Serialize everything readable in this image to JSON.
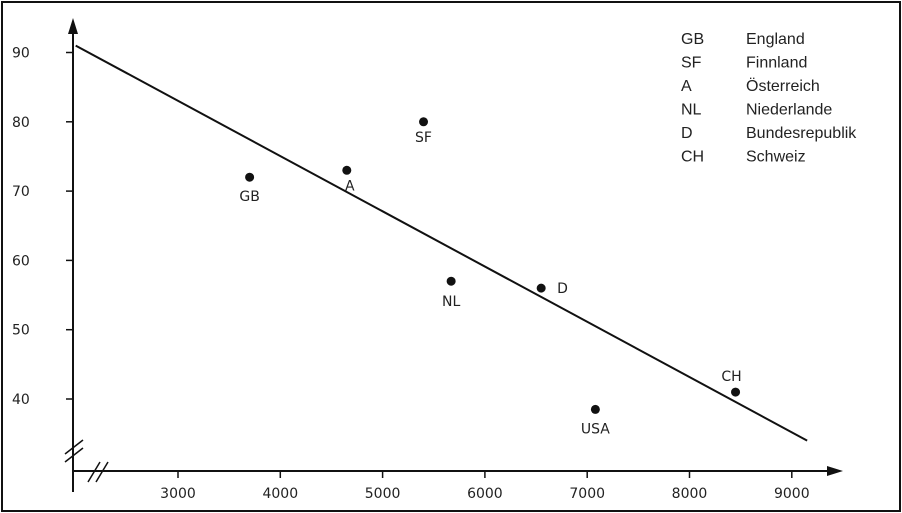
{
  "chart_data": {
    "type": "scatter",
    "title": "",
    "xlabel": "",
    "ylabel": "",
    "xlim": [
      2000,
      9400
    ],
    "ylim": [
      33,
      93
    ],
    "x_ticks": [
      3000,
      4000,
      5000,
      6000,
      7000,
      8000,
      9000
    ],
    "y_ticks": [
      40,
      50,
      60,
      70,
      80,
      90
    ],
    "grid": false,
    "axis_breaks": true,
    "legend_position": "top-right",
    "series": [
      {
        "points": [
          {
            "label": "GB",
            "x": 3700,
            "y": 72
          },
          {
            "label": "A",
            "x": 4650,
            "y": 73
          },
          {
            "label": "SF",
            "x": 5400,
            "y": 80
          },
          {
            "label": "NL",
            "x": 5670,
            "y": 57
          },
          {
            "label": "D",
            "x": 6550,
            "y": 56
          },
          {
            "label": "USA",
            "x": 7080,
            "y": 38.5
          },
          {
            "label": "CH",
            "x": 8450,
            "y": 41
          }
        ]
      }
    ],
    "trend_line": {
      "from": {
        "x": 2000,
        "y": 91
      },
      "to": {
        "x": 9150,
        "y": 34
      }
    },
    "legend": [
      {
        "code": "GB",
        "name": "England"
      },
      {
        "code": "SF",
        "name": "Finnland"
      },
      {
        "code": "A",
        "name": "Österreich"
      },
      {
        "code": "NL",
        "name": "Niederlande"
      },
      {
        "code": "D",
        "name": "Bundesrepublik"
      },
      {
        "code": "CH",
        "name": "Schweiz"
      }
    ],
    "colors": {
      "ink": "#111111",
      "background": "#ffffff"
    }
  }
}
